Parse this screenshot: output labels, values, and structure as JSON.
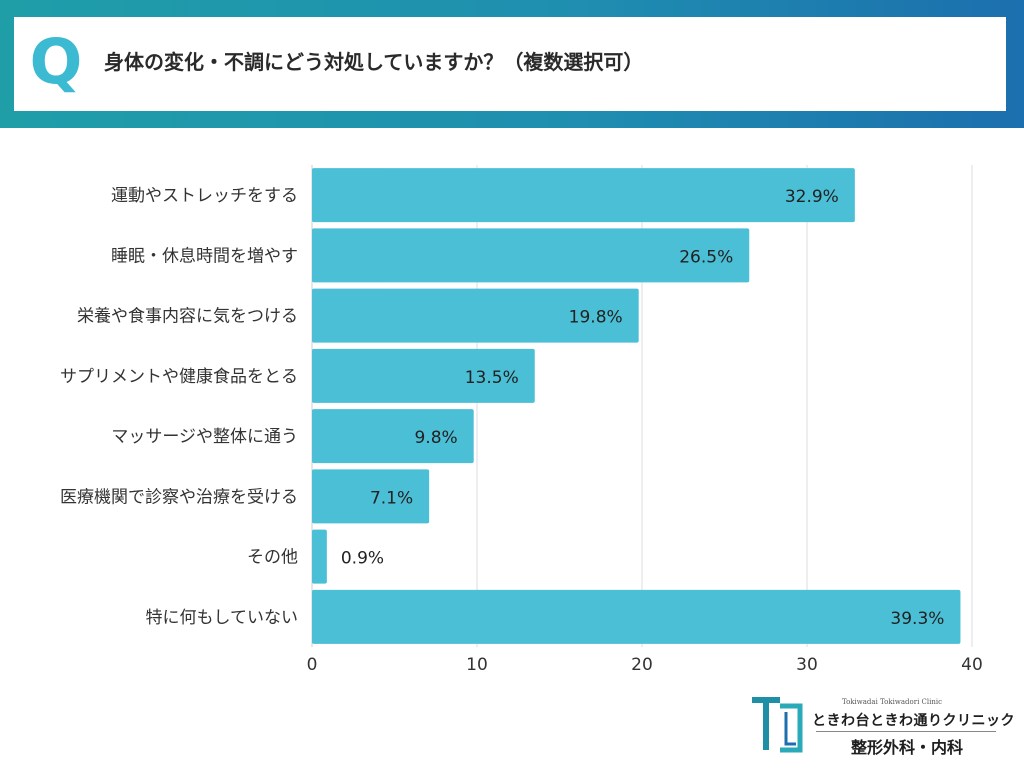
{
  "header": {
    "q_mark": "Q",
    "question": "身体の変化・不調にどう対処していますか？（複数選択可）"
  },
  "chart_data": {
    "type": "bar",
    "orientation": "horizontal",
    "categories": [
      "運動やストレッチをする",
      "睡眠・休息時間を増やす",
      "栄養や食事内容に気をつける",
      "サプリメントや健康食品をとる",
      "マッサージや整体に通う",
      "医療機関で診察や治療を受ける",
      "その他",
      "特に何もしていない"
    ],
    "values": [
      32.9,
      26.5,
      19.8,
      13.5,
      9.8,
      7.1,
      0.9,
      39.3
    ],
    "value_labels": [
      "32.9%",
      "26.5%",
      "19.8%",
      "13.5%",
      "9.8%",
      "7.1%",
      "0.9%",
      "39.3%"
    ],
    "xlim": [
      0,
      40
    ],
    "x_ticks": [
      0,
      10,
      20,
      30,
      40
    ],
    "grid": true,
    "title": "",
    "xlabel": "",
    "ylabel": "",
    "bar_color": "#4bbfd6"
  },
  "logo": {
    "en": "Tokiwadai Tokiwadori Clinic",
    "jp": "ときわ台ときわ通りクリニック",
    "dept": "整形外科・内科"
  },
  "colors": {
    "accent": "#3cbad1",
    "band_start": "#1f9ea8",
    "band_end": "#1c6fae"
  }
}
